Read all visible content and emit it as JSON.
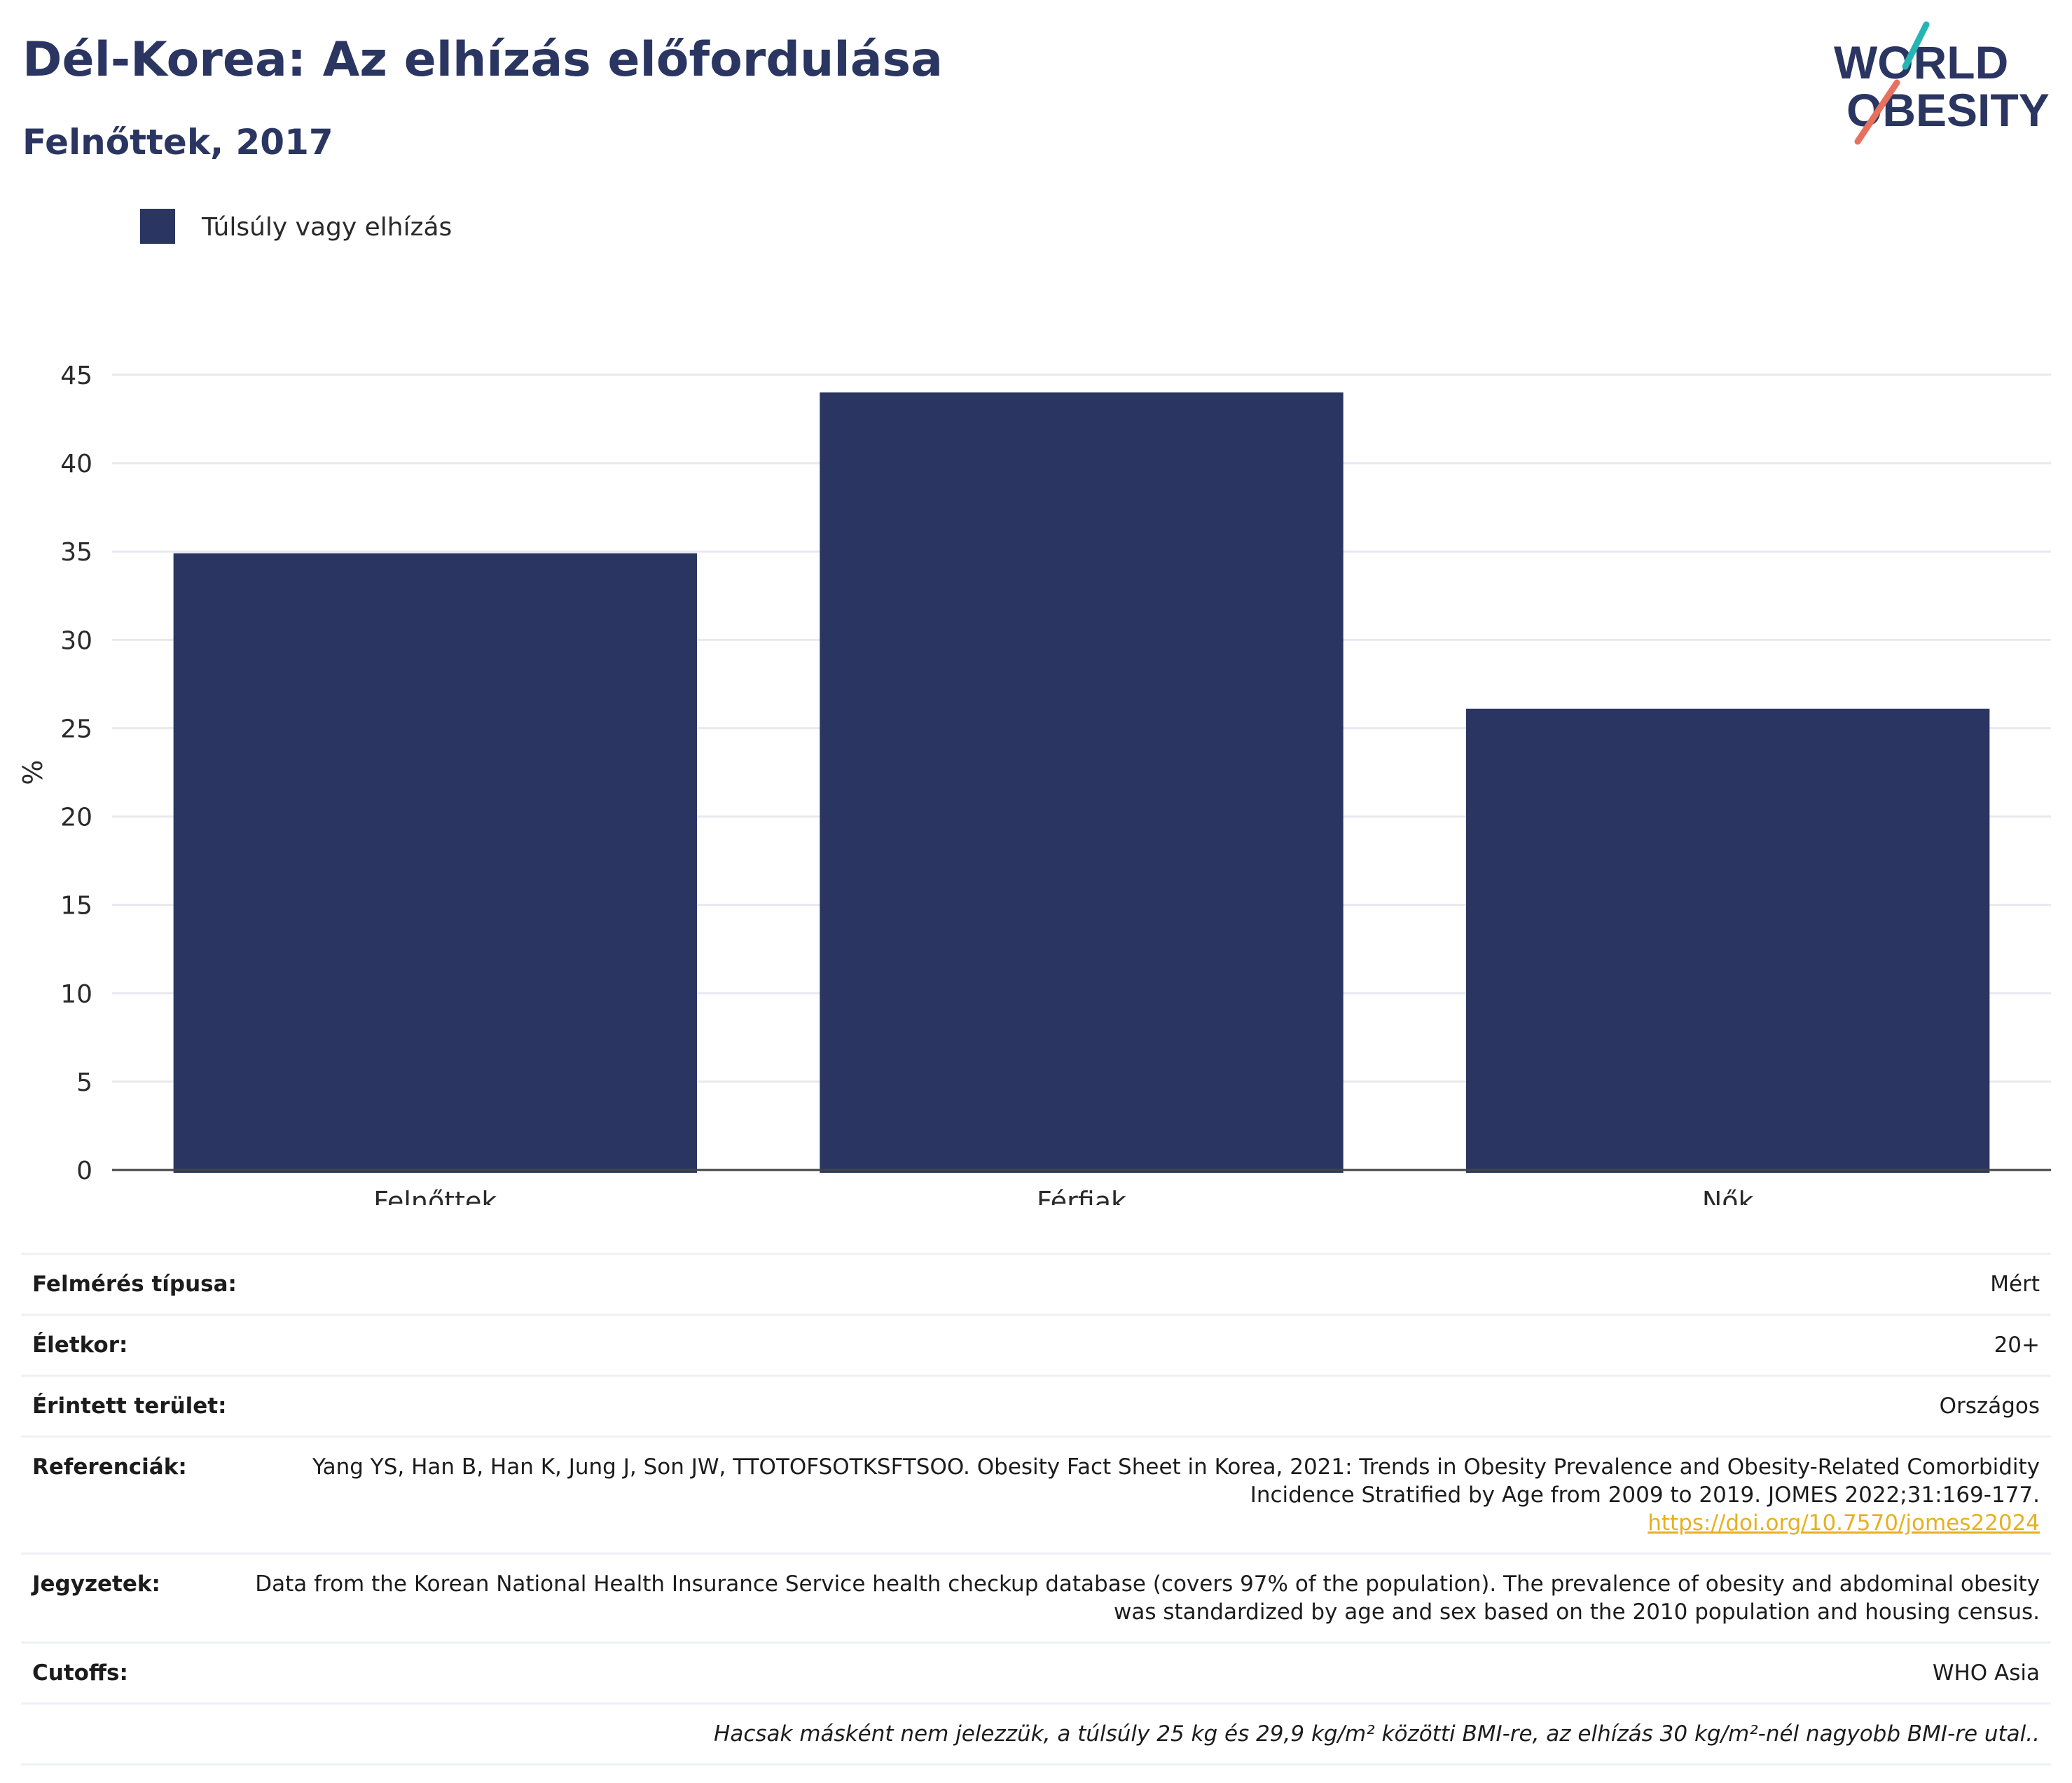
{
  "header": {
    "title": "Dél-Korea: Az elhízás előfordulása",
    "subtitle": "Felnőttek, 2017"
  },
  "logo": {
    "line1": "WORLD",
    "line2": "OBESITY"
  },
  "colors": {
    "bar": "#2a3661",
    "axis": "#444444",
    "grid": "#e8e9ef",
    "accent_teal": "#26b5b5",
    "accent_coral": "#e8705e",
    "link": "#e6b020"
  },
  "chart_data": {
    "type": "bar",
    "categories": [
      "Felnőttek",
      "Férfiak",
      "Nők"
    ],
    "series": [
      {
        "name": "Túlsúly vagy elhízás",
        "values": [
          34.9,
          44.0,
          26.1
        ]
      }
    ],
    "ylabel": "%",
    "ylim": [
      0,
      45
    ],
    "yticks": [
      0,
      5,
      10,
      15,
      20,
      25,
      30,
      35,
      40,
      45
    ],
    "grid": true,
    "legend": "top-left"
  },
  "meta": {
    "rows": [
      {
        "label": "Felmérés típusa:",
        "value": "Mért"
      },
      {
        "label": "Életkor:",
        "value": "20+"
      },
      {
        "label": "Érintett terület:",
        "value": "Országos"
      },
      {
        "label": "Referenciák:",
        "value": "Yang YS, Han B, Han K, Jung J, Son JW, TTOTOFSOTKSFTSOO. Obesity Fact Sheet in Korea, 2021: Trends in Obesity Prevalence and Obesity-Related Comorbidity Incidence Stratified by Age from 2009 to 2019. JOMES 2022;31:169-177.",
        "link": "https://doi.org/10.7570/jomes22024"
      },
      {
        "label": "Jegyzetek:",
        "value": "Data from the Korean National Health Insurance Service health checkup database (covers 97% of the population). The prevalence of obesity and abdominal obesity was standardized by age and sex based on the 2010 population and housing census."
      },
      {
        "label": "Cutoffs:",
        "value": "WHO Asia"
      }
    ],
    "footnote": "Hacsak másként nem jelezzük, a túlsúly 25 kg és 29,9 kg/m² közötti BMI-re, az elhízás 30 kg/m²-nél nagyobb BMI-re utal.."
  }
}
